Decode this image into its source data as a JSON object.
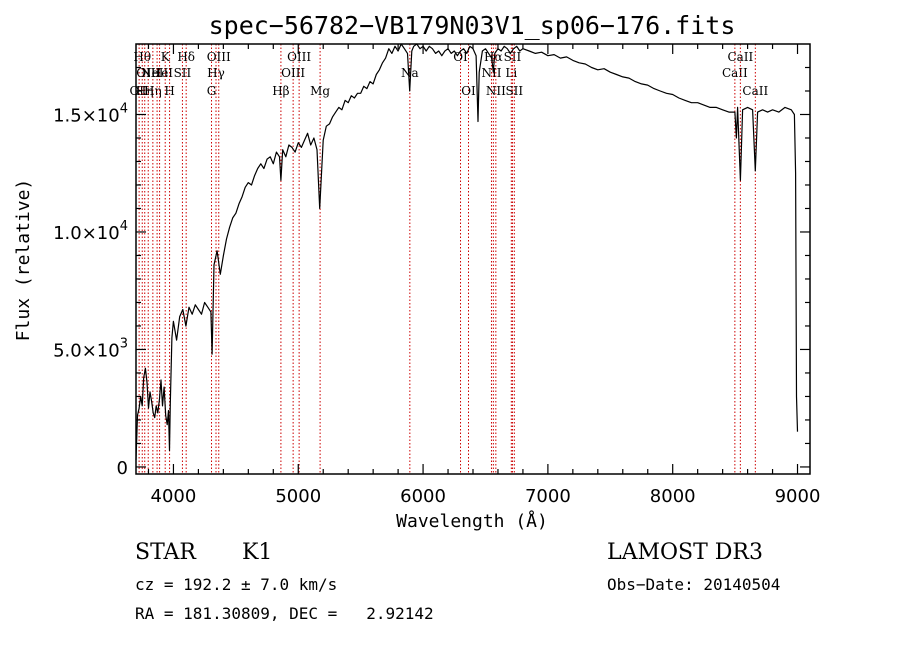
{
  "chart_data": {
    "type": "line",
    "title": "spec−56782−VB179N03V1_sp06−176.fits",
    "xlabel": "Wavelength (Å)",
    "ylabel": "Flux (relative)",
    "xlim": [
      3700,
      9100
    ],
    "ylim": [
      -300,
      18000
    ],
    "x_ticks": [
      {
        "value": 4000,
        "label": "4000"
      },
      {
        "value": 5000,
        "label": "5000"
      },
      {
        "value": 6000,
        "label": "6000"
      },
      {
        "value": 7000,
        "label": "7000"
      },
      {
        "value": 8000,
        "label": "8000"
      },
      {
        "value": 9000,
        "label": "9000"
      }
    ],
    "y_ticks": [
      {
        "value": 0,
        "mantissa": "0",
        "exponent": ""
      },
      {
        "value": 5000,
        "mantissa": "5.0×10",
        "exponent": "3"
      },
      {
        "value": 10000,
        "mantissa": "1.0×10",
        "exponent": "4"
      },
      {
        "value": 15000,
        "mantissa": "1.5×10",
        "exponent": "4"
      }
    ],
    "series": [
      {
        "name": "flux",
        "color": "#000000",
        "points": [
          [
            3700,
            300
          ],
          [
            3712,
            2200
          ],
          [
            3725,
            2500
          ],
          [
            3738,
            3000
          ],
          [
            3750,
            2600
          ],
          [
            3762,
            3800
          ],
          [
            3775,
            4200
          ],
          [
            3788,
            3600
          ],
          [
            3800,
            2500
          ],
          [
            3812,
            3200
          ],
          [
            3825,
            2800
          ],
          [
            3838,
            2300
          ],
          [
            3850,
            2100
          ],
          [
            3862,
            2600
          ],
          [
            3875,
            2300
          ],
          [
            3888,
            2900
          ],
          [
            3900,
            3700
          ],
          [
            3912,
            2600
          ],
          [
            3925,
            3400
          ],
          [
            3938,
            2200
          ],
          [
            3950,
            1800
          ],
          [
            3960,
            2400
          ],
          [
            3968,
            700
          ],
          [
            3975,
            2700
          ],
          [
            3988,
            5500
          ],
          [
            4000,
            6200
          ],
          [
            4025,
            5400
          ],
          [
            4050,
            6400
          ],
          [
            4075,
            6700
          ],
          [
            4100,
            6000
          ],
          [
            4125,
            6800
          ],
          [
            4150,
            6500
          ],
          [
            4175,
            6900
          ],
          [
            4200,
            6700
          ],
          [
            4225,
            6500
          ],
          [
            4250,
            7000
          ],
          [
            4275,
            6800
          ],
          [
            4300,
            6600
          ],
          [
            4310,
            4800
          ],
          [
            4325,
            8600
          ],
          [
            4350,
            9200
          ],
          [
            4375,
            8200
          ],
          [
            4400,
            9000
          ],
          [
            4425,
            9700
          ],
          [
            4450,
            10200
          ],
          [
            4475,
            10600
          ],
          [
            4500,
            10800
          ],
          [
            4525,
            11200
          ],
          [
            4550,
            11500
          ],
          [
            4575,
            11900
          ],
          [
            4600,
            12100
          ],
          [
            4625,
            12000
          ],
          [
            4650,
            12400
          ],
          [
            4675,
            12700
          ],
          [
            4700,
            12900
          ],
          [
            4725,
            12700
          ],
          [
            4750,
            13100
          ],
          [
            4775,
            13200
          ],
          [
            4800,
            12900
          ],
          [
            4825,
            13400
          ],
          [
            4850,
            13200
          ],
          [
            4861,
            12200
          ],
          [
            4875,
            13500
          ],
          [
            4900,
            13200
          ],
          [
            4925,
            13700
          ],
          [
            4950,
            13600
          ],
          [
            4975,
            13400
          ],
          [
            5000,
            13800
          ],
          [
            5025,
            13600
          ],
          [
            5050,
            13900
          ],
          [
            5075,
            14200
          ],
          [
            5100,
            13700
          ],
          [
            5125,
            14000
          ],
          [
            5150,
            13500
          ],
          [
            5172,
            11000
          ],
          [
            5200,
            13900
          ],
          [
            5225,
            14500
          ],
          [
            5250,
            14600
          ],
          [
            5275,
            14900
          ],
          [
            5300,
            15100
          ],
          [
            5325,
            15300
          ],
          [
            5350,
            15200
          ],
          [
            5375,
            15600
          ],
          [
            5400,
            15500
          ],
          [
            5425,
            15800
          ],
          [
            5450,
            15700
          ],
          [
            5475,
            15900
          ],
          [
            5500,
            15900
          ],
          [
            5525,
            16200
          ],
          [
            5550,
            16100
          ],
          [
            5575,
            16400
          ],
          [
            5600,
            16300
          ],
          [
            5625,
            16700
          ],
          [
            5650,
            16900
          ],
          [
            5675,
            17200
          ],
          [
            5700,
            17400
          ],
          [
            5725,
            17800
          ],
          [
            5750,
            17600
          ],
          [
            5775,
            17900
          ],
          [
            5800,
            17700
          ],
          [
            5825,
            18000
          ],
          [
            5850,
            17800
          ],
          [
            5875,
            17600
          ],
          [
            5893,
            16000
          ],
          [
            5910,
            17700
          ],
          [
            5925,
            17900
          ],
          [
            5950,
            18000
          ],
          [
            5975,
            17800
          ],
          [
            6000,
            17900
          ],
          [
            6025,
            17700
          ],
          [
            6050,
            17900
          ],
          [
            6075,
            17800
          ],
          [
            6100,
            17600
          ],
          [
            6125,
            17700
          ],
          [
            6150,
            17500
          ],
          [
            6175,
            17700
          ],
          [
            6200,
            17800
          ],
          [
            6225,
            17600
          ],
          [
            6250,
            17700
          ],
          [
            6275,
            17500
          ],
          [
            6300,
            17700
          ],
          [
            6325,
            17800
          ],
          [
            6350,
            17600
          ],
          [
            6375,
            17900
          ],
          [
            6400,
            17800
          ],
          [
            6425,
            17500
          ],
          [
            6440,
            14700
          ],
          [
            6450,
            16800
          ],
          [
            6475,
            17700
          ],
          [
            6500,
            17800
          ],
          [
            6525,
            17600
          ],
          [
            6550,
            17400
          ],
          [
            6563,
            16800
          ],
          [
            6575,
            17600
          ],
          [
            6600,
            17800
          ],
          [
            6625,
            17700
          ],
          [
            6650,
            17900
          ],
          [
            6675,
            17800
          ],
          [
            6700,
            17600
          ],
          [
            6725,
            17800
          ],
          [
            6750,
            17900
          ],
          [
            6775,
            17700
          ],
          [
            6800,
            17800
          ],
          [
            6850,
            17700
          ],
          [
            6900,
            17600
          ],
          [
            6950,
            17650
          ],
          [
            7000,
            17500
          ],
          [
            7050,
            17550
          ],
          [
            7100,
            17400
          ],
          [
            7150,
            17450
          ],
          [
            7200,
            17300
          ],
          [
            7250,
            17200
          ],
          [
            7300,
            17150
          ],
          [
            7350,
            17000
          ],
          [
            7400,
            16900
          ],
          [
            7450,
            16950
          ],
          [
            7500,
            16800
          ],
          [
            7550,
            16700
          ],
          [
            7600,
            16600
          ],
          [
            7650,
            16550
          ],
          [
            7700,
            16400
          ],
          [
            7750,
            16300
          ],
          [
            7800,
            16250
          ],
          [
            7850,
            16100
          ],
          [
            7900,
            16000
          ],
          [
            7950,
            15900
          ],
          [
            8000,
            15850
          ],
          [
            8050,
            15700
          ],
          [
            8100,
            15600
          ],
          [
            8150,
            15500
          ],
          [
            8200,
            15500
          ],
          [
            8250,
            15400
          ],
          [
            8300,
            15300
          ],
          [
            8350,
            15300
          ],
          [
            8400,
            15200
          ],
          [
            8450,
            15100
          ],
          [
            8498,
            15100
          ],
          [
            8510,
            14000
          ],
          [
            8520,
            15300
          ],
          [
            8542,
            12200
          ],
          [
            8560,
            15200
          ],
          [
            8600,
            15300
          ],
          [
            8640,
            15200
          ],
          [
            8662,
            12600
          ],
          [
            8680,
            15100
          ],
          [
            8720,
            15200
          ],
          [
            8760,
            15100
          ],
          [
            8800,
            15200
          ],
          [
            8850,
            15100
          ],
          [
            8900,
            15300
          ],
          [
            8950,
            15200
          ],
          [
            8975,
            15000
          ],
          [
            8985,
            12500
          ],
          [
            8992,
            3000
          ],
          [
            9000,
            1500
          ]
        ]
      }
    ],
    "line_markers": [
      {
        "x": 3725,
        "label": "OII",
        "row": 3
      },
      {
        "x": 3750,
        "label": "Hθ",
        "row": 1
      },
      {
        "x": 3770,
        "label": "Hη",
        "row": 3
      },
      {
        "x": 3798,
        "label": "OIII",
        "row": 2
      },
      {
        "x": 3835,
        "label": "Hη",
        "row": 3
      },
      {
        "x": 3869,
        "label": "NeIII",
        "row": 2
      },
      {
        "x": 3889,
        "label": "He",
        "row": 2
      },
      {
        "x": 3934,
        "label": "K",
        "row": 1
      },
      {
        "x": 3969,
        "label": "H",
        "row": 3
      },
      {
        "x": 4072,
        "label": "SII",
        "row": 2
      },
      {
        "x": 4102,
        "label": "Hδ",
        "row": 1
      },
      {
        "x": 4305,
        "label": "G",
        "row": 3
      },
      {
        "x": 4341,
        "label": "Hγ",
        "row": 2
      },
      {
        "x": 4363,
        "label": "OIII",
        "row": 1
      },
      {
        "x": 4861,
        "label": "Hβ",
        "row": 3
      },
      {
        "x": 4959,
        "label": "OIII",
        "row": 2
      },
      {
        "x": 5007,
        "label": "OIII",
        "row": 1
      },
      {
        "x": 5175,
        "label": "Mg",
        "row": 3
      },
      {
        "x": 5894,
        "label": "Na",
        "row": 2
      },
      {
        "x": 6300,
        "label": "OI",
        "row": 1
      },
      {
        "x": 6364,
        "label": "OI",
        "row": 3
      },
      {
        "x": 6548,
        "label": "NII",
        "row": 2
      },
      {
        "x": 6563,
        "label": "Hα",
        "row": 1
      },
      {
        "x": 6583,
        "label": "NII",
        "row": 3
      },
      {
        "x": 6707,
        "label": "Li",
        "row": 2
      },
      {
        "x": 6716,
        "label": "SII",
        "row": 1
      },
      {
        "x": 6731,
        "label": "SII",
        "row": 3
      },
      {
        "x": 8498,
        "label": "CaII",
        "row": 2
      },
      {
        "x": 8542,
        "label": "CaII",
        "row": 1
      },
      {
        "x": 8662,
        "label": "CaII",
        "row": 3
      }
    ]
  },
  "info": {
    "class": "STAR",
    "subclass": "K1",
    "survey": "LAMOST DR3",
    "cz": "cz = 192.2 ± 7.0 km/s",
    "obs_date": "Obs−Date: 20140504",
    "coords": "RA = 181.30809, DEC =   2.92142"
  }
}
